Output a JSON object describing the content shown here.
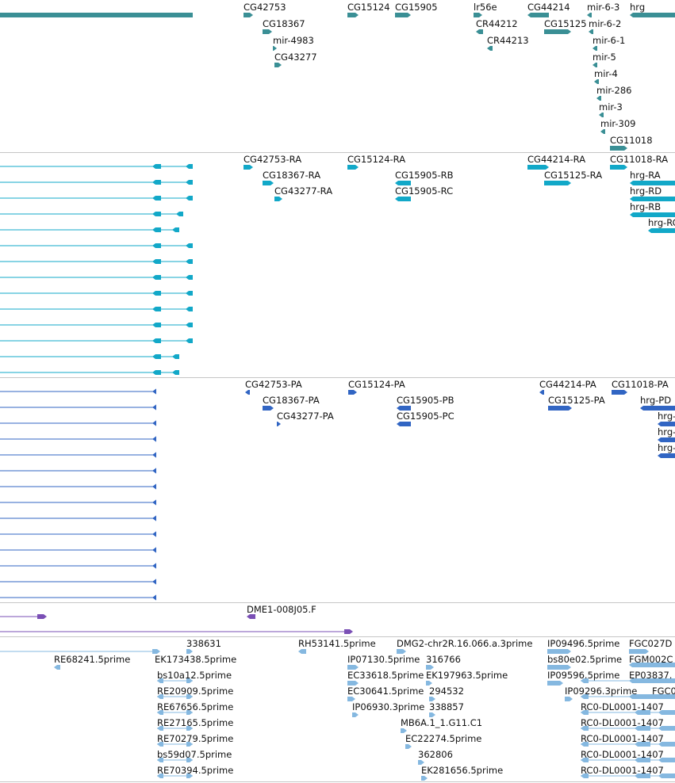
{
  "colors": {
    "gene": "#3a8f95",
    "transcript": "#12a8c8",
    "protein": "#3165c3",
    "clone": "#7a4fb5",
    "est": "#85b8e0",
    "divider": "#c6c6c6"
  },
  "tracks": {
    "genes": {
      "labels": [
        "CG42753",
        "CG18367",
        "mir-4983",
        "CG43277",
        "CG15124",
        "CG15905",
        "lr56e",
        "CR44212",
        "CR44213",
        "CG44214",
        "CG15125",
        "mir-6-3",
        "hrg",
        "mir-6-2",
        "mir-6-1",
        "mir-5",
        "mir-4",
        "mir-286",
        "mir-3",
        "mir-309",
        "CG11018"
      ]
    },
    "transcripts": {
      "labels": [
        "CG42753-RA",
        "CG18367-RA",
        "CG43277-RA",
        "CG15124-RA",
        "CG15905-RB",
        "CG15905-RC",
        "CG44214-RA",
        "CG15125-RA",
        "CG11018-RA",
        "hrg-RA",
        "hrg-RD",
        "hrg-RB",
        "hrg-RC"
      ]
    },
    "proteins": {
      "labels": [
        "CG42753-PA",
        "CG18367-PA",
        "CG43277-PA",
        "CG15124-PA",
        "CG15905-PB",
        "CG15905-PC",
        "CG44214-PA",
        "CG15125-PA",
        "CG11018-PA",
        "hrg-PD",
        "hrg-PA",
        "hrg-PB",
        "hrg-PC"
      ]
    },
    "clones": {
      "labels": [
        "DME1-008J05.F"
      ]
    },
    "ests": {
      "labels": [
        "338631",
        "RH53141.5prime",
        "DMG2-chr2R.16.066.a.3prime",
        "IP09496.5prime",
        "FGC027D",
        "RE68241.5prime",
        "EK173438.5prime",
        "IP07130.5prime",
        "316766",
        "bs80e02.5prime",
        "FGM002C",
        "bs10a12.5prime",
        "EC33618.5prime",
        "EK197963.5prime",
        "IP09596.5prime",
        "EP03837.",
        "RE20909.5prime",
        "EC30641.5prime",
        "294532",
        "IP09296.3prime",
        "FGC0",
        "RE67656.5prime",
        "IP06930.3prime",
        "338857",
        "RC0-DL0001-1407",
        "RE27165.5prime",
        "MB6A.1_1.G11.C1",
        "RC0-DL0001-1407",
        "RE70279.5prime",
        "EC22274.5prime",
        "RC0-DL0001-1407",
        "bs59d07.5prime",
        "362806",
        "RC0-DL0001-1407",
        "RE70394.5prime",
        "EK281656.5prime",
        "RC0-DL0001-1407"
      ]
    }
  }
}
